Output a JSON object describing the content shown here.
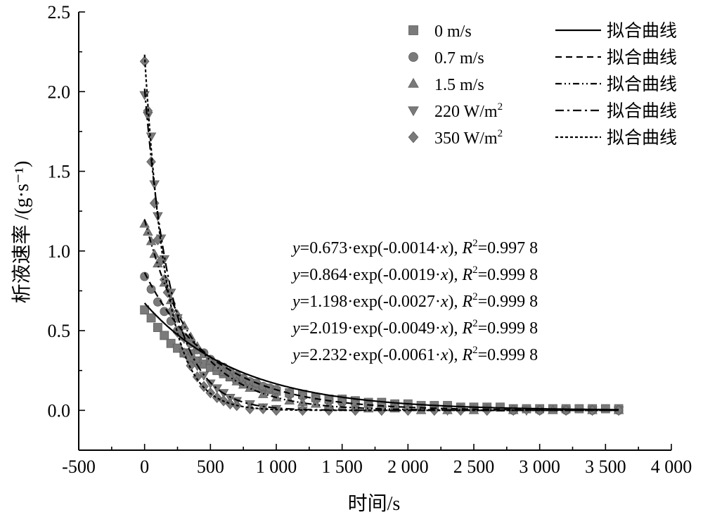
{
  "chart_data": {
    "type": "scatter",
    "xlabel": "时间/s",
    "ylabel": "析液速率 /(g·s⁻¹)",
    "xlim": [
      -500,
      4000
    ],
    "ylim": [
      -0.25,
      2.5
    ],
    "xticks": [
      -500,
      0,
      500,
      1000,
      1500,
      2000,
      2500,
      3000,
      3500,
      4000
    ],
    "xtick_labels": [
      "-500",
      "0",
      "500",
      "1 000",
      "1 500",
      "2 000",
      "2 500",
      "3 000",
      "3 500",
      "4 000"
    ],
    "yticks": [
      0.0,
      0.5,
      1.0,
      1.5,
      2.0,
      2.5
    ],
    "ytick_labels": [
      "0.0",
      "0.5",
      "1.0",
      "1.5",
      "2.0",
      "2.5"
    ],
    "legend_position": "top-right",
    "fit_label": "拟合曲线",
    "series": [
      {
        "name": "0 m/s",
        "marker": "square",
        "fit_dash": "solid",
        "fit": {
          "a": 0.673,
          "b": -0.0014
        },
        "x": [
          0,
          50,
          100,
          150,
          200,
          250,
          300,
          350,
          400,
          450,
          500,
          550,
          600,
          650,
          700,
          750,
          800,
          850,
          900,
          950,
          1000,
          1100,
          1200,
          1300,
          1400,
          1500,
          1600,
          1700,
          1800,
          1900,
          2000,
          2100,
          2200,
          2300,
          2400,
          2500,
          2600,
          2700,
          2800,
          2900,
          3000,
          3100,
          3200,
          3300,
          3400,
          3500,
          3600
        ],
        "y": [
          0.63,
          0.58,
          0.52,
          0.47,
          0.42,
          0.39,
          0.36,
          0.33,
          0.31,
          0.29,
          0.27,
          0.25,
          0.23,
          0.21,
          0.2,
          0.18,
          0.17,
          0.15,
          0.14,
          0.13,
          0.12,
          0.11,
          0.1,
          0.08,
          0.07,
          0.07,
          0.06,
          0.05,
          0.05,
          0.04,
          0.04,
          0.03,
          0.03,
          0.03,
          0.02,
          0.02,
          0.02,
          0.02,
          0.01,
          0.01,
          0.01,
          0.01,
          0.01,
          0.01,
          0.01,
          0.01,
          0.01
        ]
      },
      {
        "name": "0.7 m/s",
        "marker": "circle",
        "fit_dash": "dashed",
        "fit": {
          "a": 0.864,
          "b": -0.0019
        },
        "x": [
          0,
          50,
          100,
          150,
          200,
          250,
          300,
          350,
          400,
          450,
          500,
          550,
          600,
          650,
          700,
          750,
          800,
          850,
          900,
          950,
          1000,
          1100,
          1200,
          1300,
          1400,
          1500,
          1600,
          1700,
          1800,
          1900,
          2000,
          2200,
          2400,
          2600,
          2800,
          3000,
          3200,
          3400,
          3600
        ],
        "y": [
          0.84,
          0.76,
          0.68,
          0.62,
          0.56,
          0.5,
          0.46,
          0.42,
          0.38,
          0.36,
          0.32,
          0.29,
          0.27,
          0.24,
          0.22,
          0.2,
          0.18,
          0.17,
          0.15,
          0.14,
          0.13,
          0.1,
          0.09,
          0.07,
          0.06,
          0.05,
          0.04,
          0.03,
          0.03,
          0.02,
          0.02,
          0.01,
          0.01,
          0.01,
          0.0,
          0.0,
          0.0,
          0.0,
          0.0
        ]
      },
      {
        "name": "1.5 m/s",
        "marker": "triangle-up",
        "fit_dash": "dashdotdot",
        "fit": {
          "a": 1.198,
          "b": -0.0027
        },
        "x": [
          0,
          25,
          50,
          75,
          100,
          150,
          200,
          250,
          300,
          350,
          400,
          450,
          500,
          550,
          600,
          650,
          700,
          750,
          800,
          900,
          1000,
          1100,
          1200,
          1300,
          1400,
          1500,
          1700,
          1900,
          2100,
          2300,
          2500,
          2800,
          3100,
          3400,
          3600
        ],
        "y": [
          1.17,
          1.12,
          1.06,
          0.98,
          0.92,
          0.8,
          0.69,
          0.6,
          0.53,
          0.46,
          0.4,
          0.35,
          0.31,
          0.27,
          0.24,
          0.21,
          0.18,
          0.16,
          0.14,
          0.1,
          0.08,
          0.06,
          0.05,
          0.04,
          0.03,
          0.02,
          0.01,
          0.01,
          0.0,
          0.0,
          0.0,
          0.0,
          0.0,
          0.0,
          0.0
        ]
      },
      {
        "name": "220 W/m²",
        "marker": "triangle-down",
        "fit_dash": "dashdot",
        "fit": {
          "a": 2.019,
          "b": -0.0049
        },
        "x": [
          0,
          25,
          50,
          75,
          100,
          125,
          150,
          200,
          250,
          300,
          350,
          400,
          450,
          500,
          550,
          600,
          650,
          700,
          800,
          900,
          1000,
          1200,
          1400,
          1600,
          1800,
          2000,
          2300,
          2600,
          2900,
          3200,
          3400,
          3600
        ],
        "y": [
          1.98,
          1.85,
          1.72,
          1.42,
          1.22,
          1.08,
          0.95,
          0.74,
          0.58,
          0.45,
          0.36,
          0.28,
          0.22,
          0.17,
          0.14,
          0.11,
          0.08,
          0.06,
          0.04,
          0.02,
          0.01,
          0.0,
          0.0,
          0.0,
          0.0,
          0.0,
          0.0,
          0.0,
          0.0,
          0.0,
          0.0,
          0.0
        ]
      },
      {
        "name": "350 W/m²",
        "marker": "diamond",
        "fit_dash": "dotted",
        "fit": {
          "a": 2.232,
          "b": -0.0061
        },
        "x": [
          0,
          25,
          50,
          75,
          100,
          125,
          150,
          175,
          200,
          250,
          300,
          350,
          400,
          450,
          500,
          550,
          600,
          650,
          700,
          800,
          900,
          1000,
          1200,
          1400,
          1600,
          1800,
          2000,
          2200,
          2400,
          2600,
          2800,
          3000,
          3200,
          3400,
          3600
        ],
        "y": [
          2.19,
          1.88,
          1.56,
          1.3,
          1.07,
          0.94,
          0.82,
          0.74,
          0.62,
          0.49,
          0.36,
          0.28,
          0.21,
          0.15,
          0.11,
          0.08,
          0.06,
          0.04,
          0.03,
          0.01,
          0.01,
          0.0,
          0.0,
          0.0,
          0.0,
          0.0,
          0.0,
          0.0,
          0.0,
          0.0,
          0.0,
          0.0,
          0.0,
          0.0,
          0.0
        ]
      }
    ],
    "annotations": [
      {
        "y_prefix": "y",
        "formula": "=0.673·exp(-0.0014·",
        "x_var": "x",
        "close": "), ",
        "r": "R",
        "r_sup": "2",
        "r_value": "=0.997 8"
      },
      {
        "y_prefix": "y",
        "formula": "=0.864·exp(-0.0019·",
        "x_var": "x",
        "close": "), ",
        "r": "R",
        "r_sup": "2",
        "r_value": "=0.999 8"
      },
      {
        "y_prefix": "y",
        "formula": "=1.198·exp(-0.0027·",
        "x_var": "x",
        "close": "), ",
        "r": "R",
        "r_sup": "2",
        "r_value": "=0.999 8"
      },
      {
        "y_prefix": "y",
        "formula": "=2.019·exp(-0.0049·",
        "x_var": "x",
        "close": "), ",
        "r": "R",
        "r_sup": "2",
        "r_value": "=0.999 8"
      },
      {
        "y_prefix": "y",
        "formula": "=2.232·exp(-0.0061·",
        "x_var": "x",
        "close": "), ",
        "r": "R",
        "r_sup": "2",
        "r_value": "=0.999 8"
      }
    ],
    "colors": {
      "marker": "#7a7a7a",
      "line": "#000000"
    }
  }
}
